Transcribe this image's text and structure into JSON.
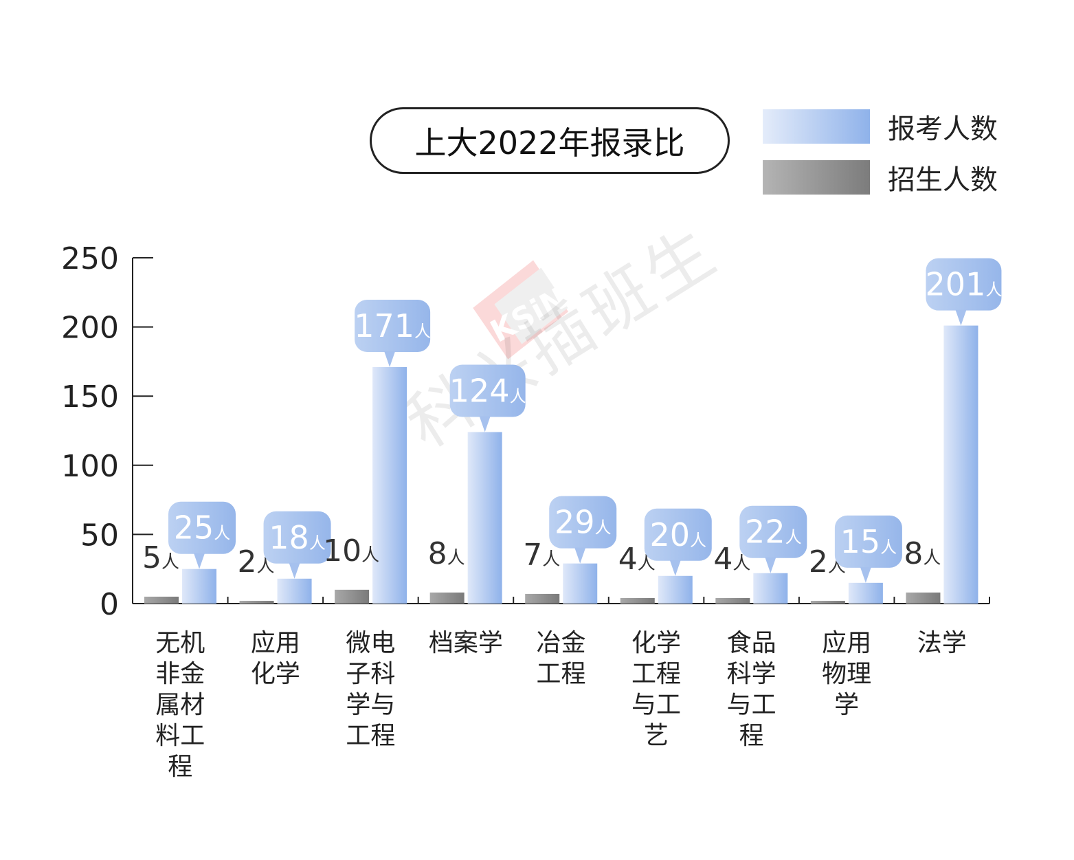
{
  "chart_data": {
    "type": "bar",
    "title": "上大2022年报录比",
    "categories": [
      [
        "无机",
        "非金",
        "属材",
        "料工",
        "程"
      ],
      [
        "应用",
        "化学"
      ],
      [
        "微电",
        "子科",
        "学与",
        "工程"
      ],
      [
        "档案学"
      ],
      [
        "冶金",
        "工程"
      ],
      [
        "化学",
        "工程",
        "与工",
        "艺"
      ],
      [
        "食品",
        "科学",
        "与工",
        "程"
      ],
      [
        "应用",
        "物理",
        "学"
      ],
      [
        "法学"
      ]
    ],
    "series": [
      {
        "name": "招生人数",
        "values": [
          5,
          2,
          10,
          8,
          7,
          4,
          4,
          2,
          8
        ],
        "color": "#8a8a8a"
      },
      {
        "name": "报考人数",
        "values": [
          25,
          18,
          171,
          124,
          29,
          20,
          22,
          15,
          201
        ],
        "color": "#9ab9ec"
      }
    ],
    "unit": "人",
    "ylim": [
      0,
      250
    ],
    "yticks": [
      0,
      50,
      100,
      150,
      200,
      250
    ],
    "legend_position": "top-right",
    "grid": false
  },
  "watermark": {
    "text": "科兴插班生",
    "logo_text": "KSiNG"
  },
  "colors": {
    "apply_light": "#e4ecfa",
    "apply_dark": "#8fb2ea",
    "admit_light": "#b4b4b4",
    "admit_dark": "#7c7c7c",
    "bubble": "#a9c3ee"
  }
}
